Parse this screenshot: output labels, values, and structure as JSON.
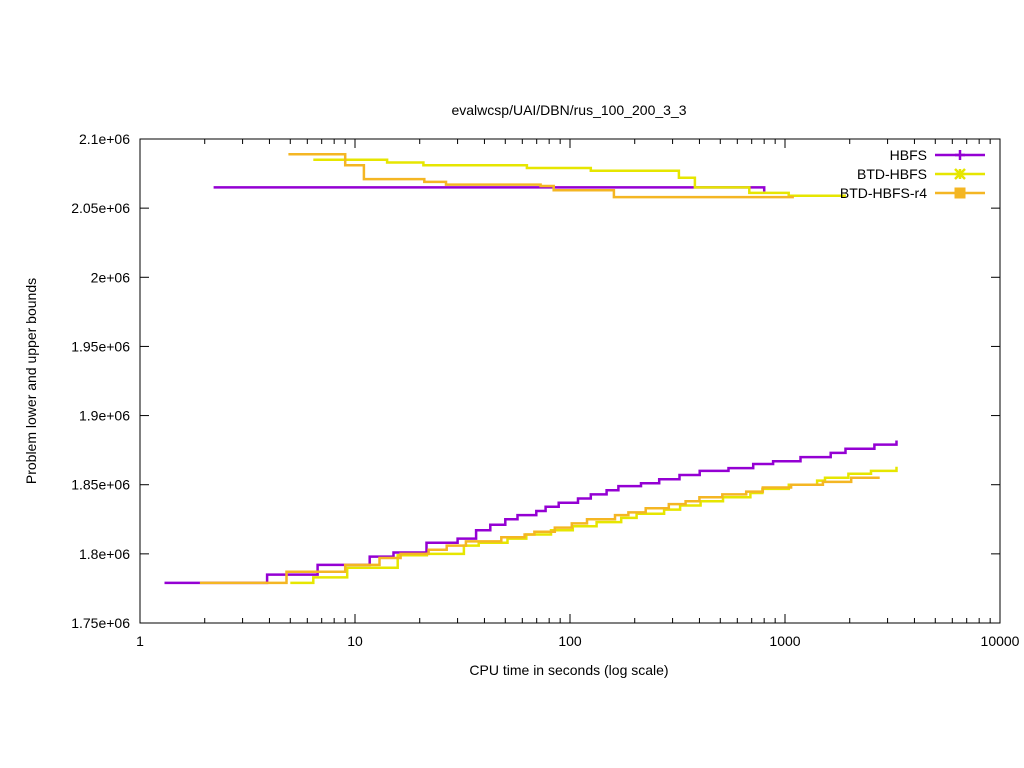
{
  "chart_data": {
    "type": "line",
    "title": "evalwcsp/UAI/DBN/rus_100_200_3_3",
    "xlabel": "CPU time in seconds (log scale)",
    "ylabel": "Problem lower and upper bounds",
    "xscale": "log",
    "xlim": [
      1,
      10000
    ],
    "ylim": [
      1750000,
      2100000
    ],
    "x_ticks": [
      1,
      10,
      100,
      1000,
      10000
    ],
    "x_tick_labels": [
      "1",
      "10",
      "100",
      "1000",
      "10000"
    ],
    "y_ticks": [
      1750000,
      1800000,
      1850000,
      1900000,
      1950000,
      2000000,
      2050000,
      2100000
    ],
    "y_tick_labels": [
      "1.75e+06",
      "1.8e+06",
      "1.85e+06",
      "1.9e+06",
      "1.95e+06",
      "2e+06",
      "2.05e+06",
      "2.1e+06"
    ],
    "grid": false,
    "legend_position": "top-right",
    "series": [
      {
        "name": "HBFS",
        "color": "#9400d3",
        "marker": "plus",
        "upper": [
          [
            2.2,
            2065000
          ],
          [
            800,
            2065000
          ],
          [
            800,
            2062000
          ]
        ],
        "lower": [
          [
            1.3,
            1779000
          ],
          [
            3.9,
            1779000
          ],
          [
            3.9,
            1785000
          ],
          [
            6.7,
            1785000
          ],
          [
            6.7,
            1792000
          ],
          [
            11.7,
            1792000
          ],
          [
            11.7,
            1798000
          ],
          [
            15.1,
            1798000
          ],
          [
            15.1,
            1801000
          ],
          [
            21.5,
            1801000
          ],
          [
            21.5,
            1808000
          ],
          [
            30,
            1808000
          ],
          [
            30,
            1811000
          ],
          [
            36.6,
            1811000
          ],
          [
            36.6,
            1817000
          ],
          [
            42.6,
            1817000
          ],
          [
            42.6,
            1821000
          ],
          [
            50,
            1821000
          ],
          [
            50,
            1825000
          ],
          [
            57,
            1825000
          ],
          [
            57,
            1828000
          ],
          [
            69.7,
            1828000
          ],
          [
            69.7,
            1831000
          ],
          [
            77,
            1831000
          ],
          [
            77,
            1834000
          ],
          [
            88.6,
            1834000
          ],
          [
            88.6,
            1837000
          ],
          [
            109,
            1837000
          ],
          [
            109,
            1840000
          ],
          [
            125,
            1840000
          ],
          [
            125,
            1843000
          ],
          [
            148,
            1843000
          ],
          [
            148,
            1846000
          ],
          [
            168,
            1846000
          ],
          [
            168,
            1849000
          ],
          [
            214,
            1849000
          ],
          [
            214,
            1851000
          ],
          [
            260,
            1851000
          ],
          [
            260,
            1854000
          ],
          [
            323,
            1854000
          ],
          [
            323,
            1857000
          ],
          [
            401,
            1857000
          ],
          [
            401,
            1860000
          ],
          [
            546,
            1860000
          ],
          [
            546,
            1862000
          ],
          [
            711,
            1862000
          ],
          [
            711,
            1865000
          ],
          [
            880,
            1865000
          ],
          [
            880,
            1867000
          ],
          [
            1181,
            1867000
          ],
          [
            1181,
            1870000
          ],
          [
            1632,
            1870000
          ],
          [
            1632,
            1873000
          ],
          [
            1912,
            1873000
          ],
          [
            1912,
            1876000
          ],
          [
            2606,
            1876000
          ],
          [
            2606,
            1879000
          ],
          [
            3300,
            1879000
          ],
          [
            3300,
            1882000
          ]
        ]
      },
      {
        "name": "BTD-HBFS",
        "color": "#e6e600",
        "marker": "star",
        "upper": [
          [
            6.4,
            2085000
          ],
          [
            14.1,
            2085000
          ],
          [
            14.1,
            2083000
          ],
          [
            20.8,
            2083000
          ],
          [
            20.8,
            2081000
          ],
          [
            63,
            2081000
          ],
          [
            63,
            2079000
          ],
          [
            125,
            2079000
          ],
          [
            125,
            2077000
          ],
          [
            321,
            2077000
          ],
          [
            321,
            2072000
          ],
          [
            381,
            2072000
          ],
          [
            381,
            2065000
          ],
          [
            682,
            2065000
          ],
          [
            682,
            2061000
          ],
          [
            1040,
            2061000
          ],
          [
            1040,
            2059000
          ],
          [
            1920,
            2059000
          ]
        ],
        "lower": [
          [
            5,
            1779000
          ],
          [
            6.4,
            1779000
          ],
          [
            6.4,
            1783000
          ],
          [
            9.2,
            1783000
          ],
          [
            9.2,
            1787000
          ],
          [
            9.2,
            1787000
          ],
          [
            9.2,
            1790000
          ],
          [
            15.8,
            1790000
          ],
          [
            15.8,
            1799000
          ],
          [
            21.6,
            1799000
          ],
          [
            21.6,
            1800000
          ],
          [
            32.1,
            1800000
          ],
          [
            32.1,
            1806000
          ],
          [
            37.6,
            1806000
          ],
          [
            37.6,
            1808000
          ],
          [
            51.2,
            1808000
          ],
          [
            51.2,
            1811000
          ],
          [
            62.6,
            1811000
          ],
          [
            62.6,
            1814000
          ],
          [
            81.6,
            1814000
          ],
          [
            81.6,
            1817000
          ],
          [
            103,
            1817000
          ],
          [
            103,
            1820000
          ],
          [
            133,
            1820000
          ],
          [
            133,
            1823000
          ],
          [
            173,
            1823000
          ],
          [
            173,
            1826000
          ],
          [
            204,
            1826000
          ],
          [
            204,
            1829000
          ],
          [
            274,
            1829000
          ],
          [
            274,
            1832000
          ],
          [
            325,
            1832000
          ],
          [
            325,
            1835000
          ],
          [
            405,
            1835000
          ],
          [
            405,
            1838000
          ],
          [
            515,
            1838000
          ],
          [
            515,
            1841000
          ],
          [
            690,
            1841000
          ],
          [
            690,
            1844000
          ],
          [
            785,
            1844000
          ],
          [
            785,
            1847000
          ],
          [
            1042,
            1847000
          ],
          [
            1042,
            1850000
          ],
          [
            1411,
            1850000
          ],
          [
            1411,
            1853000
          ],
          [
            1535,
            1853000
          ],
          [
            1535,
            1855000
          ],
          [
            1971,
            1855000
          ],
          [
            1971,
            1858000
          ],
          [
            2511,
            1858000
          ],
          [
            2511,
            1860000
          ],
          [
            3300,
            1860000
          ],
          [
            3300,
            1863000
          ]
        ]
      },
      {
        "name": "BTD-HBFS-r4",
        "color": "#f4b623",
        "marker": "square",
        "upper": [
          [
            4.9,
            2089000
          ],
          [
            9,
            2089000
          ],
          [
            9,
            2081000
          ],
          [
            11,
            2081000
          ],
          [
            11,
            2071000
          ],
          [
            21,
            2071000
          ],
          [
            21,
            2069000
          ],
          [
            26.5,
            2069000
          ],
          [
            26.5,
            2067000
          ],
          [
            73,
            2067000
          ],
          [
            73,
            2066000
          ],
          [
            84,
            2066000
          ],
          [
            84,
            2063000
          ],
          [
            160,
            2063000
          ],
          [
            160,
            2058000
          ],
          [
            1100,
            2058000
          ]
        ],
        "lower": [
          [
            1.9,
            1779000
          ],
          [
            4.8,
            1779000
          ],
          [
            4.8,
            1787000
          ],
          [
            9,
            1787000
          ],
          [
            9,
            1792000
          ],
          [
            13,
            1792000
          ],
          [
            13,
            1797000
          ],
          [
            16.3,
            1797000
          ],
          [
            16.3,
            1800000
          ],
          [
            22,
            1800000
          ],
          [
            22,
            1803000
          ],
          [
            26.7,
            1803000
          ],
          [
            26.7,
            1806000
          ],
          [
            32.8,
            1806000
          ],
          [
            32.8,
            1809000
          ],
          [
            47.9,
            1809000
          ],
          [
            47.9,
            1812000
          ],
          [
            61.5,
            1812000
          ],
          [
            61.5,
            1814000
          ],
          [
            68.3,
            1814000
          ],
          [
            68.3,
            1816000
          ],
          [
            85,
            1816000
          ],
          [
            85,
            1819000
          ],
          [
            102,
            1819000
          ],
          [
            102,
            1822000
          ],
          [
            120,
            1822000
          ],
          [
            120,
            1825000
          ],
          [
            162,
            1825000
          ],
          [
            162,
            1828000
          ],
          [
            187,
            1828000
          ],
          [
            187,
            1830000
          ],
          [
            225,
            1830000
          ],
          [
            225,
            1833000
          ],
          [
            288,
            1833000
          ],
          [
            288,
            1836000
          ],
          [
            345,
            1836000
          ],
          [
            345,
            1838000
          ],
          [
            400,
            1838000
          ],
          [
            400,
            1841000
          ],
          [
            511,
            1841000
          ],
          [
            511,
            1843000
          ],
          [
            660,
            1843000
          ],
          [
            660,
            1845000
          ],
          [
            788,
            1845000
          ],
          [
            788,
            1848000
          ],
          [
            1067,
            1848000
          ],
          [
            1067,
            1850000
          ],
          [
            1500,
            1850000
          ],
          [
            1500,
            1852000
          ],
          [
            2031,
            1852000
          ],
          [
            2031,
            1855000
          ],
          [
            2757,
            1855000
          ]
        ]
      }
    ]
  }
}
